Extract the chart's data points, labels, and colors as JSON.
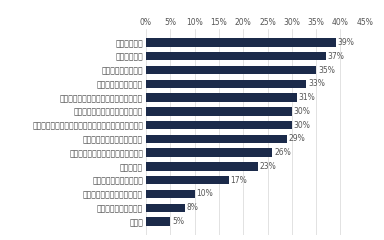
{
  "categories": [
    "その他",
    "厳しい上司がいる環境",
    "ジョブローテーションが活発",
    "本業の社会貢献性が高い",
    "給与の高さ",
    "グローバルに活躍できる環境がある",
    "教育・研修制度が整っている",
    "若い年次からチャレンジングな仕事を任せてもらえる",
    "多様な働き方の制度が整っている",
    "勤務制度、福利厚生制度が充実している",
    "経営者の考え方や実績",
    "経営理念やビジョン",
    "企業の成長性",
    "業界の成長性"
  ],
  "values": [
    5,
    8,
    10,
    17,
    23,
    26,
    29,
    30,
    30,
    31,
    33,
    35,
    37,
    39
  ],
  "bar_color": "#1b2a4a",
  "xlim": [
    0,
    45
  ],
  "xticks": [
    0,
    5,
    10,
    15,
    20,
    25,
    30,
    35,
    40,
    45
  ],
  "background_color": "#ffffff",
  "label_fontsize": 5.5,
  "value_fontsize": 5.5,
  "tick_fontsize": 5.5
}
